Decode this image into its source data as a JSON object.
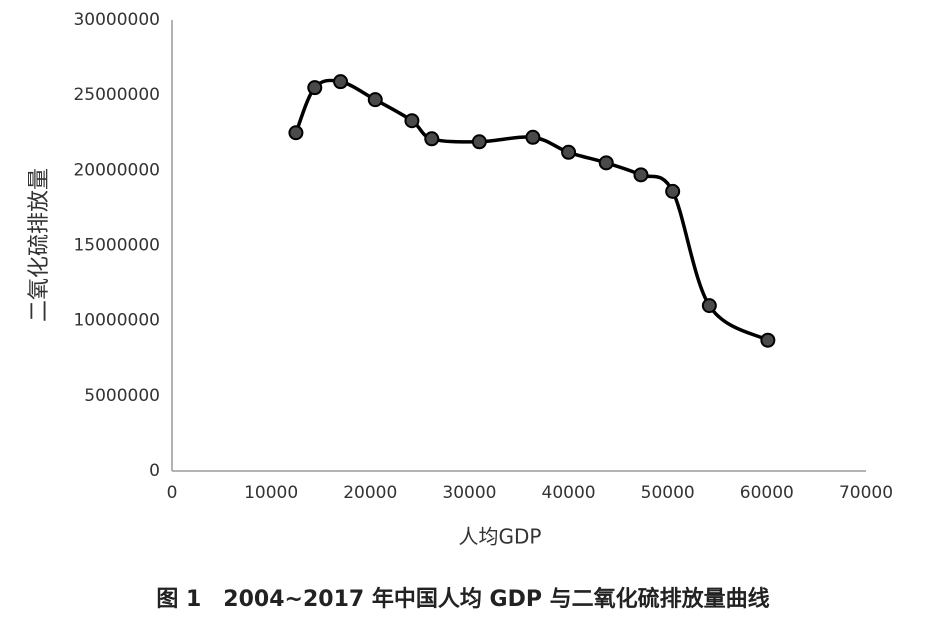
{
  "chart_data": {
    "type": "line",
    "caption": "图 1　2004~2017 年中国人均 GDP 与二氧化硫排放量曲线",
    "xlabel": "人均GDP",
    "ylabel": "二氧化硫排放量",
    "x": [
      12500,
      14400,
      17000,
      20500,
      24200,
      26200,
      31000,
      36400,
      40000,
      43800,
      47300,
      50500,
      54200,
      60100
    ],
    "series": [
      {
        "color": "#000000",
        "marker_color": "#4a4a4a",
        "values": [
          22500000,
          25500000,
          25900000,
          24700000,
          23300000,
          22100000,
          21900000,
          22200000,
          21200000,
          20500000,
          19700000,
          18600000,
          11000000,
          8700000
        ]
      }
    ],
    "xlim": [
      0,
      70000
    ],
    "xticks": [
      0,
      10000,
      20000,
      30000,
      40000,
      50000,
      60000,
      70000
    ],
    "ylim": [
      0,
      30000000
    ],
    "yticks": [
      0,
      5000000,
      10000000,
      15000000,
      20000000,
      25000000,
      30000000
    ],
    "grid": false,
    "smooth": true
  }
}
